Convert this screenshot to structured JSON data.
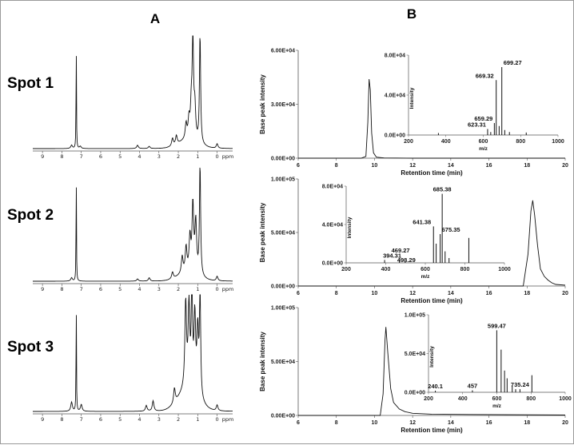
{
  "panel_letters": [
    "A",
    "B"
  ],
  "spots": [
    "Spot 1",
    "Spot 2",
    "Spot 3"
  ],
  "colors": {
    "line": "#111111",
    "axis": "#555555",
    "frame": "#9a9a9a"
  },
  "chart_data": [
    {
      "type": "line",
      "panel": "A",
      "title": "Spot 1",
      "xlabel": "ppm",
      "xlim": [
        9.5,
        -0.8
      ],
      "x_ticks": [
        9,
        8,
        7,
        6,
        5,
        4,
        3,
        2,
        1,
        0
      ],
      "x_reversed": true,
      "series": [
        {
          "peaks": [
            {
              "x": 7.26,
              "y": 1.0
            },
            {
              "x": 7.5,
              "y": 0.03
            },
            {
              "x": 7.05,
              "y": 0.02
            },
            {
              "x": 4.1,
              "y": 0.03
            },
            {
              "x": 3.5,
              "y": 0.02
            },
            {
              "x": 2.3,
              "y": 0.07
            },
            {
              "x": 2.1,
              "y": 0.08
            },
            {
              "x": 1.6,
              "y": 0.14
            },
            {
              "x": 1.45,
              "y": 0.17
            },
            {
              "x": 1.33,
              "y": 0.3
            },
            {
              "x": 1.25,
              "y": 1.0
            },
            {
              "x": 1.15,
              "y": 0.3
            },
            {
              "x": 0.88,
              "y": 1.0
            },
            {
              "x": 0.0,
              "y": 0.04
            }
          ]
        }
      ]
    },
    {
      "type": "line",
      "panel": "A",
      "title": "Spot 2",
      "xlabel": "ppm",
      "xlim": [
        9.5,
        -0.8
      ],
      "x_ticks": [
        9,
        8,
        7,
        6,
        5,
        4,
        3,
        2,
        1,
        0
      ],
      "x_reversed": true,
      "series": [
        {
          "peaks": [
            {
              "x": 7.26,
              "y": 1.0
            },
            {
              "x": 7.5,
              "y": 0.03
            },
            {
              "x": 4.1,
              "y": 0.02
            },
            {
              "x": 3.5,
              "y": 0.03
            },
            {
              "x": 2.3,
              "y": 0.06
            },
            {
              "x": 1.8,
              "y": 0.15
            },
            {
              "x": 1.6,
              "y": 0.22
            },
            {
              "x": 1.4,
              "y": 0.3
            },
            {
              "x": 1.25,
              "y": 0.6
            },
            {
              "x": 1.1,
              "y": 0.45
            },
            {
              "x": 0.88,
              "y": 1.0
            },
            {
              "x": 0.0,
              "y": 0.04
            }
          ]
        }
      ]
    },
    {
      "type": "line",
      "panel": "A",
      "title": "Spot 3",
      "xlabel": "ppm",
      "xlim": [
        9.5,
        -0.8
      ],
      "x_ticks": [
        9,
        8,
        7,
        6,
        5,
        4,
        3,
        2,
        1,
        0
      ],
      "x_reversed": true,
      "series": [
        {
          "peaks": [
            {
              "x": 7.26,
              "y": 1.0
            },
            {
              "x": 7.5,
              "y": 0.08
            },
            {
              "x": 7.0,
              "y": 0.06
            },
            {
              "x": 3.65,
              "y": 0.05
            },
            {
              "x": 3.3,
              "y": 0.09
            },
            {
              "x": 2.2,
              "y": 0.13
            },
            {
              "x": 1.62,
              "y": 0.75
            },
            {
              "x": 1.45,
              "y": 0.7
            },
            {
              "x": 1.3,
              "y": 1.0
            },
            {
              "x": 1.15,
              "y": 0.65
            },
            {
              "x": 1.0,
              "y": 0.55
            },
            {
              "x": 0.88,
              "y": 1.0
            },
            {
              "x": 0.0,
              "y": 0.05
            }
          ]
        }
      ]
    },
    {
      "type": "line",
      "panel": "B",
      "xlabel": "Retention time  (min)",
      "ylabel": "Base peak intensity",
      "xlim": [
        6,
        20
      ],
      "ylim": [
        0,
        60000
      ],
      "x_ticks": [
        6,
        8,
        10,
        12,
        14,
        16,
        18,
        20
      ],
      "y_tick_labels": [
        "0.00E+00",
        "3.00E+04",
        "6.00E+04"
      ],
      "series": [
        {
          "points": [
            [
              6,
              0
            ],
            [
              9.3,
              0
            ],
            [
              9.55,
              1000
            ],
            [
              9.65,
              20000
            ],
            [
              9.72,
              44000
            ],
            [
              9.78,
              38000
            ],
            [
              9.85,
              14000
            ],
            [
              9.95,
              3000
            ],
            [
              10.1,
              600
            ],
            [
              10.5,
              150
            ],
            [
              12,
              0
            ],
            [
              20,
              0
            ]
          ]
        }
      ],
      "inset": {
        "type": "bar",
        "xlabel": "m/z",
        "ylabel": "Intensity",
        "xlim": [
          200,
          1000
        ],
        "ylim": [
          0,
          80000
        ],
        "x_ticks": [
          200,
          400,
          600,
          800,
          1000
        ],
        "y_tick_labels": [
          "0.0E+00",
          "4.0E+04",
          "8.0E+04"
        ],
        "peaks": [
          {
            "x": 623.31,
            "y": 6000,
            "label": "623.31"
          },
          {
            "x": 659.29,
            "y": 12000,
            "label": "659.29"
          },
          {
            "x": 669.32,
            "y": 55000,
            "label": "669.32"
          },
          {
            "x": 699.27,
            "y": 68000,
            "label": "699.27"
          },
          {
            "x": 360,
            "y": 2000
          },
          {
            "x": 640,
            "y": 3000
          },
          {
            "x": 685,
            "y": 9000
          },
          {
            "x": 715,
            "y": 5000
          },
          {
            "x": 740,
            "y": 3000
          },
          {
            "x": 830,
            "y": 2500
          }
        ]
      }
    },
    {
      "type": "line",
      "panel": "B",
      "xlabel": "Retention time  (min)",
      "ylabel": "Base peak intensity",
      "xlim": [
        6,
        20
      ],
      "ylim": [
        0,
        100000
      ],
      "x_ticks": [
        6,
        8,
        10,
        12,
        14,
        16,
        18,
        20
      ],
      "y_tick_labels": [
        "0.00E+00",
        "5.00E+04",
        "1.00E+05"
      ],
      "series": [
        {
          "points": [
            [
              6,
              0
            ],
            [
              17.8,
              0
            ],
            [
              18.05,
              30000
            ],
            [
              18.2,
              70000
            ],
            [
              18.3,
              80000
            ],
            [
              18.4,
              66000
            ],
            [
              18.55,
              38000
            ],
            [
              18.7,
              16000
            ],
            [
              18.9,
              9000
            ],
            [
              19.1,
              5500
            ],
            [
              19.3,
              3000
            ],
            [
              19.5,
              1500
            ],
            [
              20,
              800
            ]
          ]
        }
      ],
      "inset": {
        "type": "bar",
        "xlabel": "m/z",
        "ylabel": "Intensity",
        "xlim": [
          200,
          1000
        ],
        "ylim": [
          0,
          80000
        ],
        "x_ticks": [
          200,
          400,
          600,
          800,
          1000
        ],
        "y_tick_labels": [
          "0.0E+00",
          "4.0E+04",
          "8.0E+04"
        ],
        "peaks": [
          {
            "x": 394.31,
            "y": 3000,
            "label": "394.31"
          },
          {
            "x": 469.27,
            "y": 3500,
            "label": "469.27"
          },
          {
            "x": 498.29,
            "y": 1500,
            "label": "498.29"
          },
          {
            "x": 641.38,
            "y": 38000,
            "label": "641.38"
          },
          {
            "x": 675.35,
            "y": 30000,
            "label": "675.35"
          },
          {
            "x": 685.38,
            "y": 72000,
            "label": "685.38"
          },
          {
            "x": 655,
            "y": 20000
          },
          {
            "x": 700,
            "y": 12000
          },
          {
            "x": 720,
            "y": 5000
          },
          {
            "x": 820,
            "y": 26000
          }
        ]
      }
    },
    {
      "type": "line",
      "panel": "B",
      "xlabel": "Retention time  (min)",
      "ylabel": "Base peak intensity",
      "xlim": [
        6,
        20
      ],
      "ylim": [
        0,
        100000
      ],
      "x_ticks": [
        6,
        8,
        10,
        12,
        14,
        16,
        18,
        20
      ],
      "y_tick_labels": [
        "0.00E+00",
        "5.00E+04",
        "1.00E+05"
      ],
      "series": [
        {
          "points": [
            [
              6,
              0
            ],
            [
              10.3,
              0
            ],
            [
              10.45,
              20000
            ],
            [
              10.55,
              70000
            ],
            [
              10.6,
              82000
            ],
            [
              10.7,
              58000
            ],
            [
              10.85,
              25000
            ],
            [
              11.0,
              12000
            ],
            [
              11.3,
              6000
            ],
            [
              11.6,
              3500
            ],
            [
              12,
              2000
            ],
            [
              13,
              1200
            ],
            [
              15,
              900
            ],
            [
              17,
              700
            ],
            [
              20,
              400
            ]
          ]
        }
      ],
      "inset": {
        "type": "bar",
        "xlabel": "m/z",
        "ylabel": "Intensity",
        "xlim": [
          200,
          1000
        ],
        "ylim": [
          0,
          100000
        ],
        "x_ticks": [
          200,
          400,
          600,
          800,
          1000
        ],
        "y_tick_labels": [
          "0.0E+00",
          "5.0E+04",
          "1.0E+05"
        ],
        "peaks": [
          {
            "x": 240.1,
            "y": 2000,
            "label": "240.1"
          },
          {
            "x": 457,
            "y": 2500,
            "label": "457"
          },
          {
            "x": 599.47,
            "y": 80000,
            "label": "599.47"
          },
          {
            "x": 735.24,
            "y": 4000,
            "label": "735.24"
          },
          {
            "x": 625,
            "y": 55000
          },
          {
            "x": 645,
            "y": 28000
          },
          {
            "x": 660,
            "y": 18000
          },
          {
            "x": 690,
            "y": 8000
          },
          {
            "x": 710,
            "y": 4000
          },
          {
            "x": 805,
            "y": 22000
          }
        ]
      }
    }
  ]
}
